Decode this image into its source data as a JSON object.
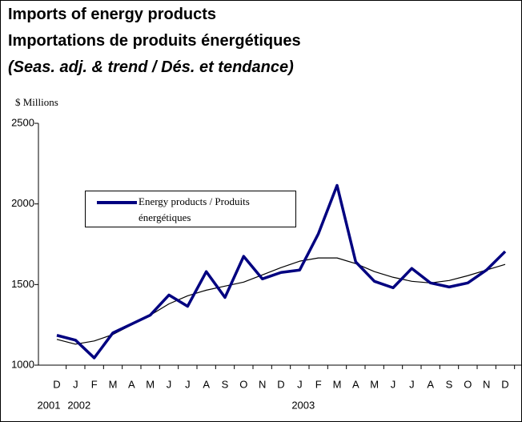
{
  "chart_data": {
    "type": "line",
    "title": [
      "Imports of energy products",
      "Importations de produits énergétiques"
    ],
    "subtitle": "(Seas. adj. & trend / Dés. et tendance)",
    "y_label": "$ Millions",
    "categories": [
      "D",
      "J",
      "F",
      "M",
      "A",
      "M",
      "J",
      "J",
      "A",
      "S",
      "O",
      "N",
      "D",
      "J",
      "F",
      "M",
      "A",
      "M",
      "J",
      "J",
      "A",
      "S",
      "O",
      "N",
      "D"
    ],
    "years": [
      "2001",
      "2002",
      null,
      null,
      null,
      null,
      null,
      null,
      null,
      null,
      null,
      null,
      null,
      "2003",
      null,
      null,
      null,
      null,
      null,
      null,
      null,
      null,
      null,
      null,
      null
    ],
    "series": [
      {
        "name": "Energy products / Produits énergétiques",
        "color": "#000080",
        "width": 3.5,
        "values": [
          1185,
          1155,
          1045,
          1200,
          1255,
          1310,
          1435,
          1365,
          1580,
          1420,
          1675,
          1535,
          1575,
          1590,
          1815,
          2115,
          1640,
          1520,
          1480,
          1600,
          1510,
          1485,
          1510,
          1590,
          1705
        ]
      },
      {
        "color": "#000000",
        "width": 1.2,
        "values": [
          1160,
          1130,
          1150,
          1190,
          1250,
          1310,
          1380,
          1430,
          1465,
          1490,
          1515,
          1560,
          1605,
          1645,
          1665,
          1665,
          1630,
          1580,
          1545,
          1520,
          1510,
          1525,
          1555,
          1590,
          1625
        ]
      }
    ],
    "ylim": [
      1000,
      2500
    ],
    "yticks": [
      1000,
      1500,
      2000,
      2500
    ],
    "grid": false
  }
}
